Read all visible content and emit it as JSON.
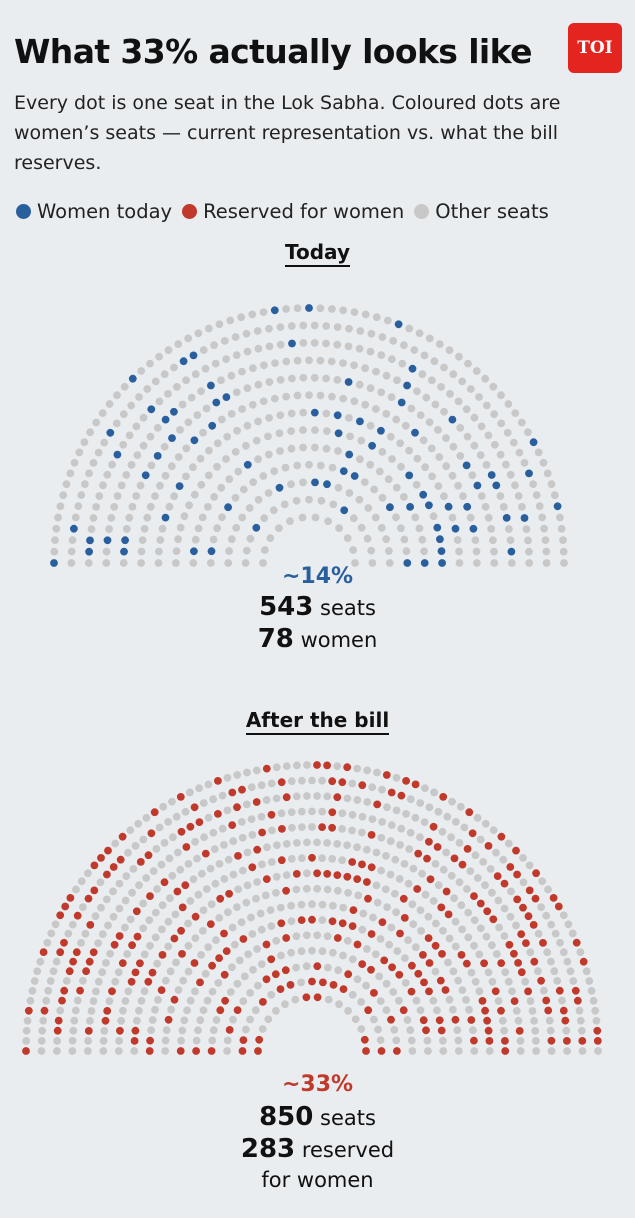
{
  "title": "What 33% actually looks like",
  "logo": "TOI",
  "subtitle": "Every dot is one seat in the Lok Sabha. Coloured dots are women’s seats — current representation vs. what the bill reserves.",
  "legend": [
    {
      "label": "Women today",
      "color": "#2a5f9e"
    },
    {
      "label": "Reserved for women",
      "color": "#c0392b"
    },
    {
      "label": "Other seats",
      "color": "#c8c8c8"
    }
  ],
  "chart_data": [
    {
      "type": "parliament",
      "title": "Today",
      "total_seats": 543,
      "highlighted_seats": 78,
      "highlight_label": "women",
      "percent_label": "~14%",
      "seats_label": "seats",
      "highlight_color": "#2a5f9e",
      "other_color": "#c8c8c8"
    },
    {
      "type": "parliament",
      "title": "After the bill",
      "total_seats": 850,
      "highlighted_seats": 283,
      "highlight_label_1": "reserved",
      "highlight_label_2": "for women",
      "percent_label": "~33%",
      "seats_label": "seats",
      "highlight_color": "#c0392b",
      "other_color": "#c8c8c8"
    }
  ]
}
